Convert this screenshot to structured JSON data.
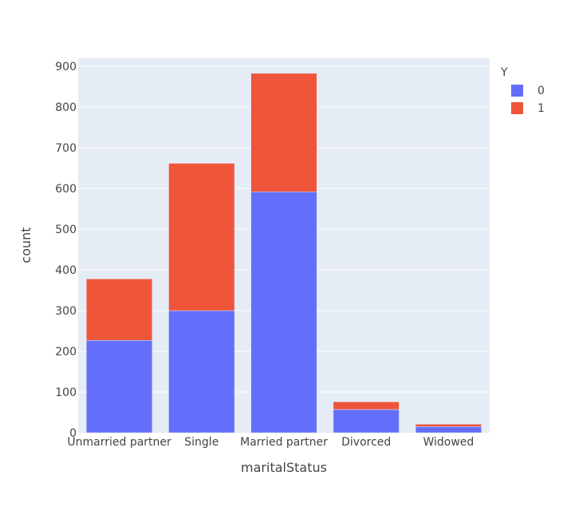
{
  "chart_data": {
    "type": "bar",
    "barmode": "stack",
    "categories": [
      "Unmarried partner",
      "Single",
      "Married partner",
      "Divorced",
      "Widowed"
    ],
    "series": [
      {
        "name": "0",
        "color": "#636efa",
        "values": [
          227,
          300,
          592,
          57,
          15
        ]
      },
      {
        "name": "1",
        "color": "#ef553b",
        "values": [
          151,
          362,
          291,
          19,
          6
        ]
      }
    ],
    "xlabel": "maritalStatus",
    "ylabel": "count",
    "ylim": [
      0,
      920
    ],
    "yticks": [
      0,
      100,
      200,
      300,
      400,
      500,
      600,
      700,
      800,
      900
    ],
    "legend_title": "Y",
    "legend_position": "top-right",
    "grid": true,
    "plot_bg": "#e5ecf6"
  }
}
